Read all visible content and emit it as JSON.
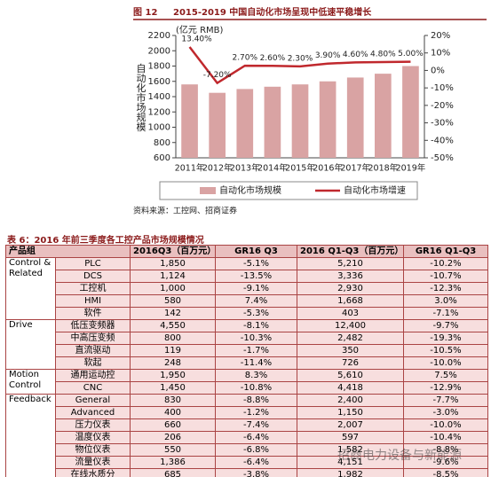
{
  "chart_data": {
    "type": "bar-line",
    "figure_label": "图 12",
    "title": "2015-2019 中国自动化市场呈现中低速平稳增长",
    "unit": "(亿元 RMB)",
    "ylabel": "自动化市场规模",
    "categories": [
      "2011年",
      "2012年",
      "2013年",
      "2014年",
      "2015年",
      "2016年",
      "2017年",
      "2018年",
      "2019年"
    ],
    "series": [
      {
        "name": "自动化市场规模",
        "type": "bar",
        "color": "#d9a3a3",
        "values": [
          1560,
          1450,
          1500,
          1530,
          1560,
          1600,
          1650,
          1700,
          1800
        ]
      },
      {
        "name": "自动化市场增速",
        "type": "line",
        "axis": "y2",
        "color": "#c0282d",
        "values": [
          13.4,
          -7.2,
          2.7,
          2.6,
          2.3,
          3.9,
          4.6,
          4.8,
          5.0
        ],
        "value_labels": [
          "13.40%",
          "-7.20%",
          "2.70%",
          "2.60%",
          "2.30%",
          "3.90%",
          "4.60%",
          "4.80%",
          "5.00%"
        ]
      }
    ],
    "ylim": [
      600,
      2200
    ],
    "yticks": [
      600,
      800,
      1000,
      1200,
      1400,
      1600,
      1800,
      2000,
      2200
    ],
    "y2lim": [
      -50,
      20
    ],
    "y2ticks": [
      {
        "value": -50,
        "label": "-50%"
      },
      {
        "value": -40,
        "label": "-40%"
      },
      {
        "value": -30,
        "label": "-30%"
      },
      {
        "value": -20,
        "label": "-20%"
      },
      {
        "value": -10,
        "label": "-10%"
      },
      {
        "value": 0,
        "label": "0%"
      },
      {
        "value": 10,
        "label": "10%"
      },
      {
        "value": 20,
        "label": "20%"
      }
    ],
    "legend": "bottom"
  },
  "source": "资料来源：工控网、招商证券",
  "table": {
    "title": "表 6：2016 年前三季度各工控产品市场规模情况",
    "header": [
      "产品组",
      "2016Q3（百万元）",
      "GR16 Q3",
      "2016 Q1-Q3（百万元）",
      "GR16 Q1-Q3"
    ],
    "groups": [
      {
        "name": "Control & Related",
        "rows": [
          [
            "PLC",
            "1,850",
            "-5.1%",
            "5,210",
            "-10.2%"
          ],
          [
            "DCS",
            "1,124",
            "-13.5%",
            "3,336",
            "-10.7%"
          ],
          [
            "工控机",
            "1,000",
            "-9.1%",
            "2,930",
            "-12.3%"
          ],
          [
            "HMI",
            "580",
            "7.4%",
            "1,668",
            "3.0%"
          ],
          [
            "软件",
            "142",
            "-5.3%",
            "403",
            "-7.1%"
          ]
        ]
      },
      {
        "name": "Drive",
        "rows": [
          [
            "低压变频器",
            "4,550",
            "-8.1%",
            "12,400",
            "-9.7%"
          ],
          [
            "中高压变频",
            "800",
            "-10.3%",
            "2,482",
            "-19.3%"
          ],
          [
            "直流驱动",
            "119",
            "-1.7%",
            "350",
            "-10.5%"
          ],
          [
            "软起",
            "248",
            "-11.4%",
            "726",
            "-10.0%"
          ]
        ]
      },
      {
        "name": "Motion Control",
        "rows": [
          [
            "通用运动控",
            "1,950",
            "8.3%",
            "5,610",
            "7.5%"
          ],
          [
            "CNC",
            "1,450",
            "-10.8%",
            "4,418",
            "-12.9%"
          ]
        ]
      },
      {
        "name": "Feedback",
        "rows": [
          [
            "General",
            "830",
            "-8.8%",
            "2,400",
            "-7.7%"
          ],
          [
            "Advanced",
            "400",
            "-1.2%",
            "1,150",
            "-3.0%"
          ],
          [
            "压力仪表",
            "660",
            "-7.4%",
            "2,007",
            "-10.0%"
          ],
          [
            "温度仪表",
            "206",
            "-6.4%",
            "597",
            "-10.4%"
          ],
          [
            "物位仪表",
            "550",
            "-6.8%",
            "1,582",
            "-8.8%"
          ],
          [
            "流量仪表",
            "1,386",
            "-6.4%",
            "4,151",
            "-9.6%"
          ],
          [
            "在线水质分",
            "685",
            "-3.8%",
            "1,982",
            "-8.5%"
          ]
        ]
      }
    ]
  },
  "watermark": "招商电力设备与新能源"
}
